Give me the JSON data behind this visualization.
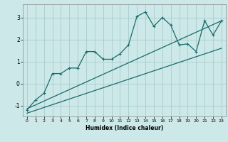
{
  "title": "",
  "xlabel": "Humidex (Indice chaleur)",
  "background_color": "#cce8e8",
  "grid_color": "#aacccc",
  "line_color": "#1a6b6b",
  "xlim": [
    -0.5,
    23.5
  ],
  "ylim": [
    -1.5,
    3.6
  ],
  "yticks": [
    -1,
    0,
    1,
    2,
    3
  ],
  "xticks": [
    0,
    1,
    2,
    3,
    4,
    5,
    6,
    7,
    8,
    9,
    10,
    11,
    12,
    13,
    14,
    15,
    16,
    17,
    18,
    19,
    20,
    21,
    22,
    23
  ],
  "line1_x": [
    0,
    1,
    2,
    3,
    4,
    5,
    6,
    7,
    8,
    9,
    10,
    11,
    12,
    13,
    14,
    15,
    16,
    17,
    18,
    19,
    20,
    21,
    22,
    23
  ],
  "line1_y": [
    -1.2,
    -0.75,
    -0.45,
    0.45,
    0.45,
    0.7,
    0.7,
    1.45,
    1.45,
    1.1,
    1.1,
    1.35,
    1.75,
    3.05,
    3.25,
    2.6,
    3.0,
    2.65,
    1.75,
    1.8,
    1.45,
    2.85,
    2.2,
    2.85
  ],
  "line2_x": [
    0,
    23
  ],
  "line2_y": [
    -1.15,
    2.85
  ],
  "line3_x": [
    0,
    23
  ],
  "line3_y": [
    -1.35,
    1.6
  ]
}
